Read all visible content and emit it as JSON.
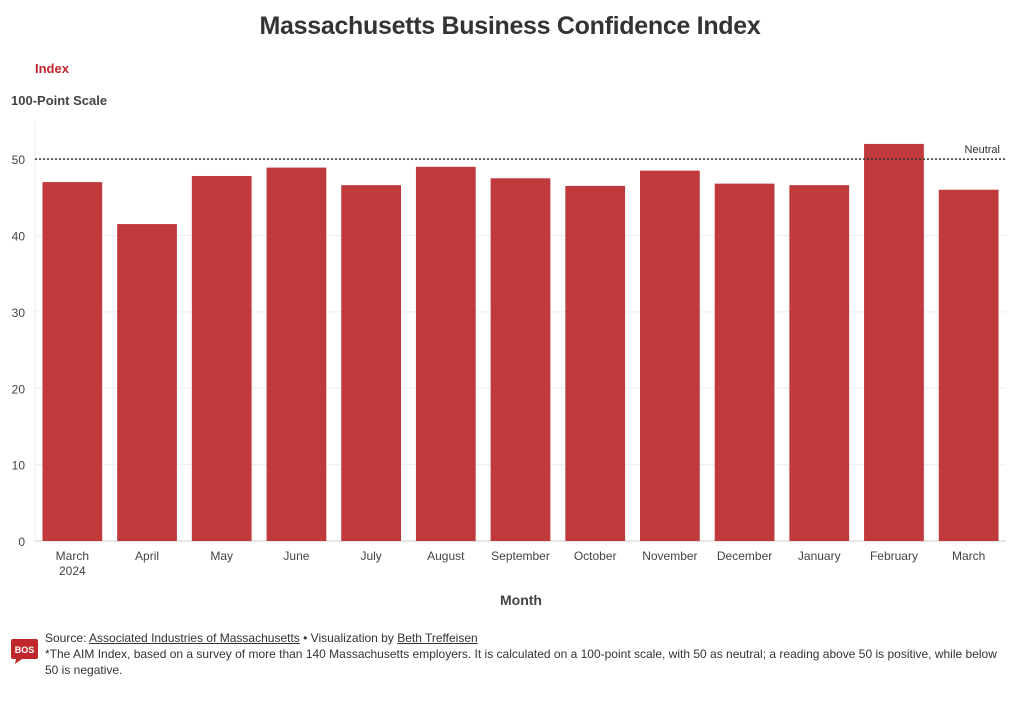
{
  "colors": {
    "bar": "#c0393b",
    "legend": "#c0272d",
    "grid": "#eeeeee",
    "axis": "#cccccc",
    "text": "#444444"
  },
  "legend_label": "Index",
  "y_axis_title": "100-Point Scale",
  "footer": {
    "source_prefix": "Source:",
    "source_link": "Associated Industries of Massachusetts",
    "viz_prefix": " • Visualization by ",
    "author_link": "Beth Treffeisen",
    "note": "*The AIM Index, based on a survey of more than 140 Massachusetts employers. It is calculated on a 100-point scale, with 50 as neutral; a reading above 50 is positive, while below 50 is negative.",
    "logo_text": "BOS",
    "logo_icon": "bos-logo-icon"
  },
  "chart_data": {
    "type": "bar",
    "title": "Massachusetts Business Confidence Index",
    "xlabel": "Month",
    "ylabel": "100-Point Scale",
    "categories": [
      [
        "March",
        "2024"
      ],
      [
        "April"
      ],
      [
        "May"
      ],
      [
        "June"
      ],
      [
        "July"
      ],
      [
        "August"
      ],
      [
        "September"
      ],
      [
        "October"
      ],
      [
        "November"
      ],
      [
        "December"
      ],
      [
        "January"
      ],
      [
        "February"
      ],
      [
        "March"
      ]
    ],
    "series": [
      {
        "name": "Index",
        "values": [
          47.0,
          41.5,
          47.8,
          48.9,
          46.6,
          49.0,
          47.5,
          46.5,
          48.5,
          46.8,
          46.6,
          52.0,
          46.0
        ]
      }
    ],
    "ylim": [
      0,
      55
    ],
    "yticks": [
      0,
      10,
      20,
      30,
      40,
      50
    ],
    "grid": true,
    "reference_line": {
      "value": 50,
      "label": "Neutral"
    }
  }
}
